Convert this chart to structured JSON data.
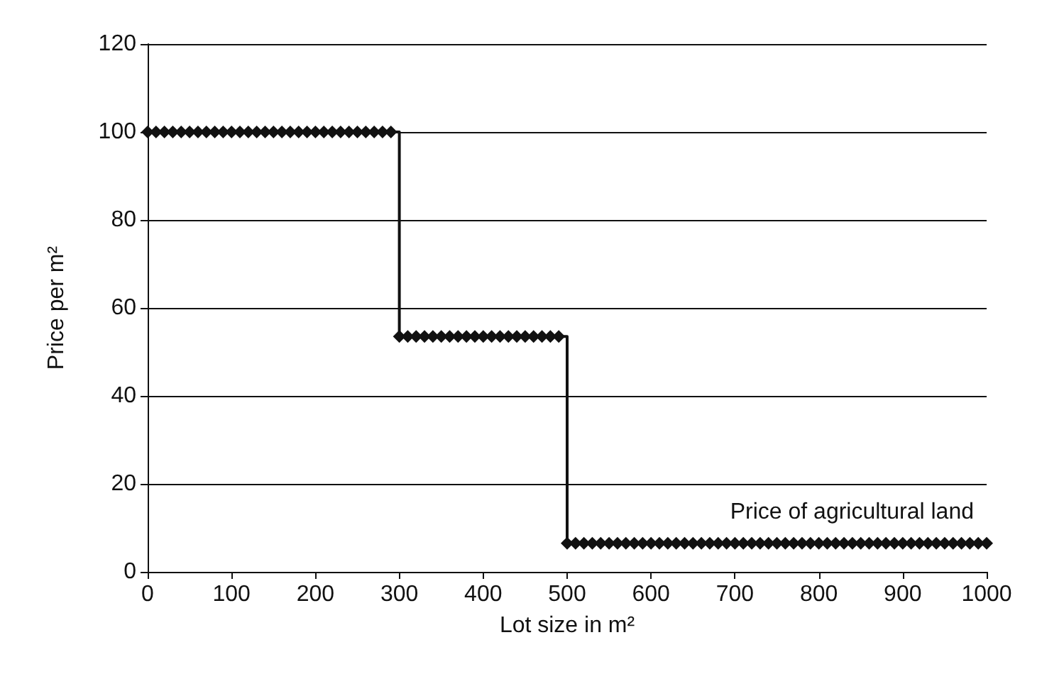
{
  "chart_data": {
    "type": "step",
    "xlabel": "Lot size in m²",
    "ylabel": "Price per m²",
    "x": [
      0,
      10,
      20,
      30,
      40,
      50,
      60,
      70,
      80,
      90,
      100,
      110,
      120,
      130,
      140,
      150,
      160,
      170,
      180,
      190,
      200,
      210,
      220,
      230,
      240,
      250,
      260,
      270,
      280,
      290,
      300,
      310,
      320,
      330,
      340,
      350,
      360,
      370,
      380,
      390,
      400,
      410,
      420,
      430,
      440,
      450,
      460,
      470,
      480,
      490,
      500,
      510,
      520,
      530,
      540,
      550,
      560,
      570,
      580,
      590,
      600,
      610,
      620,
      630,
      640,
      650,
      660,
      670,
      680,
      690,
      700,
      710,
      720,
      730,
      740,
      750,
      760,
      770,
      780,
      790,
      800,
      810,
      820,
      830,
      840,
      850,
      860,
      870,
      880,
      890,
      900,
      910,
      920,
      930,
      940,
      950,
      960,
      970,
      980,
      990,
      1000
    ],
    "series": [
      {
        "color": "#111111",
        "values": [
          100,
          100,
          100,
          100,
          100,
          100,
          100,
          100,
          100,
          100,
          100,
          100,
          100,
          100,
          100,
          100,
          100,
          100,
          100,
          100,
          100,
          100,
          100,
          100,
          100,
          100,
          100,
          100,
          100,
          100,
          53.5,
          53.5,
          53.5,
          53.5,
          53.5,
          53.5,
          53.5,
          53.5,
          53.5,
          53.5,
          53.5,
          53.5,
          53.5,
          53.5,
          53.5,
          53.5,
          53.5,
          53.5,
          53.5,
          53.5,
          6.5,
          6.5,
          6.5,
          6.5,
          6.5,
          6.5,
          6.5,
          6.5,
          6.5,
          6.5,
          6.5,
          6.5,
          6.5,
          6.5,
          6.5,
          6.5,
          6.5,
          6.5,
          6.5,
          6.5,
          6.5,
          6.5,
          6.5,
          6.5,
          6.5,
          6.5,
          6.5,
          6.5,
          6.5,
          6.5,
          6.5,
          6.5,
          6.5,
          6.5,
          6.5,
          6.5,
          6.5,
          6.5,
          6.5,
          6.5,
          6.5,
          6.5,
          6.5,
          6.5,
          6.5,
          6.5,
          6.5,
          6.5,
          6.5,
          6.5,
          6.5
        ]
      }
    ],
    "xlim": [
      0,
      1000
    ],
    "xticks": [
      0,
      100,
      200,
      300,
      400,
      500,
      600,
      700,
      800,
      900,
      1000
    ],
    "ylim": [
      0,
      120
    ],
    "yticks": [
      0,
      20,
      40,
      60,
      80,
      100,
      120
    ],
    "grid": "y",
    "marker": "diamond",
    "line_style": "solid",
    "annotations": [
      "Price of agricultural land"
    ]
  }
}
